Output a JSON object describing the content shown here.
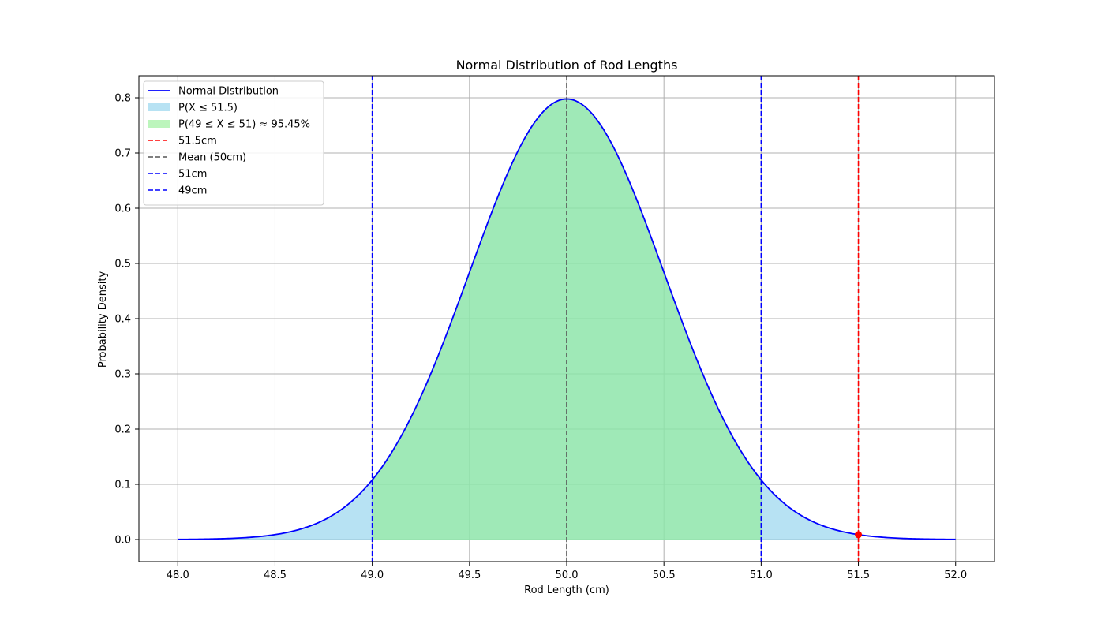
{
  "chart_data": {
    "type": "line",
    "title": "Normal Distribution of Rod Lengths",
    "xlabel": "Rod Length (cm)",
    "ylabel": "Probability Density",
    "xlim": [
      47.8,
      52.2
    ],
    "ylim": [
      -0.04,
      0.84
    ],
    "xticks": [
      48.0,
      48.5,
      49.0,
      49.5,
      50.0,
      50.5,
      51.0,
      51.5,
      52.0
    ],
    "xtick_labels": [
      "48.0",
      "48.5",
      "49.0",
      "49.5",
      "50.0",
      "50.5",
      "51.0",
      "51.5",
      "52.0"
    ],
    "yticks": [
      0.0,
      0.1,
      0.2,
      0.3,
      0.4,
      0.5,
      0.6,
      0.7,
      0.8
    ],
    "ytick_labels": [
      "0.0",
      "0.1",
      "0.2",
      "0.3",
      "0.4",
      "0.5",
      "0.6",
      "0.7",
      "0.8"
    ],
    "grid": true,
    "legend_position": "top-left",
    "distribution": {
      "mean": 50,
      "std": 0.5,
      "x_range": [
        48,
        52
      ]
    },
    "series": [
      {
        "name": "Normal Distribution",
        "kind": "curve",
        "color": "#0000ff",
        "style": "solid"
      },
      {
        "name": "P(X ≤ 51.5)",
        "kind": "fill",
        "from": 48,
        "to": 51.5,
        "color": "#87ceeb",
        "opacity": 0.6
      },
      {
        "name": "P(49 ≤ X ≤ 51) ≈ 95.45%",
        "kind": "fill",
        "from": 49,
        "to": 51,
        "color": "#90ee90",
        "opacity": 0.6
      },
      {
        "name": "51.5cm",
        "kind": "vline",
        "x": 51.5,
        "color": "#ff0000",
        "style": "dashed"
      },
      {
        "name": "Mean (50cm)",
        "kind": "vline",
        "x": 50,
        "color": "#555555",
        "style": "dashed"
      },
      {
        "name": "51cm",
        "kind": "vline",
        "x": 51,
        "color": "#0000ff",
        "style": "dashed"
      },
      {
        "name": "49cm",
        "kind": "vline",
        "x": 49,
        "color": "#0000ff",
        "style": "dashed"
      }
    ],
    "markers": [
      {
        "x": 51.5,
        "y": 0.0088,
        "color": "#ff0000"
      }
    ]
  }
}
